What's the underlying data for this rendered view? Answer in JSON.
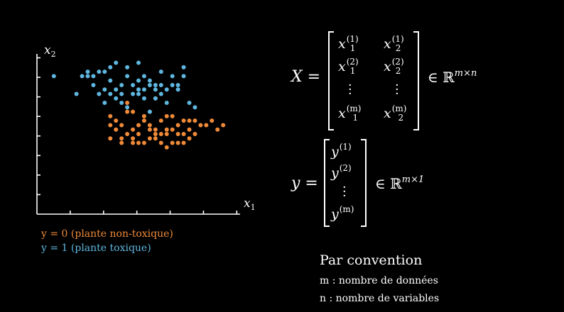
{
  "plot": {
    "x_axis_label": "x",
    "x_axis_sub": "1",
    "y_axis_label": "x",
    "y_axis_sub": "2",
    "colors": {
      "class0": "#f08a38",
      "class1": "#5fb7e0",
      "axis": "#ffffff"
    },
    "class0_points": [
      [
        21,
        26
      ],
      [
        23,
        22
      ],
      [
        16,
        25
      ],
      [
        19,
        22
      ],
      [
        24,
        16
      ],
      [
        18,
        20
      ],
      [
        21,
        19
      ],
      [
        25,
        20
      ],
      [
        14,
        21
      ],
      [
        27,
        19
      ],
      [
        17,
        19
      ],
      [
        20,
        17
      ],
      [
        22,
        18
      ],
      [
        26,
        18
      ],
      [
        15,
        17
      ],
      [
        28,
        18
      ],
      [
        19,
        16
      ],
      [
        23,
        15
      ],
      [
        13,
        22
      ],
      [
        24,
        22
      ],
      [
        18,
        18
      ],
      [
        21,
        17
      ],
      [
        25,
        16
      ],
      [
        16,
        18
      ],
      [
        29,
        20
      ],
      [
        13,
        17
      ],
      [
        22,
        21
      ],
      [
        15,
        20
      ],
      [
        27,
        17
      ],
      [
        20,
        20
      ],
      [
        23,
        18
      ],
      [
        17,
        16
      ],
      [
        14,
        19
      ],
      [
        26,
        21
      ],
      [
        19,
        21
      ],
      [
        24,
        19
      ],
      [
        15,
        16
      ],
      [
        28,
        21
      ],
      [
        22,
        16
      ],
      [
        16,
        23
      ],
      [
        20,
        19
      ],
      [
        25,
        18
      ],
      [
        18,
        16
      ],
      [
        13,
        20
      ],
      [
        27,
        21
      ],
      [
        21,
        18
      ],
      [
        30,
        20
      ],
      [
        23,
        19
      ],
      [
        17,
        17
      ],
      [
        26,
        16
      ],
      [
        32,
        19
      ],
      [
        33,
        20
      ],
      [
        31,
        21
      ],
      [
        17,
        23
      ],
      [
        20,
        23
      ]
    ],
    "class1_points": [
      [
        8,
        31
      ],
      [
        14,
        34
      ],
      [
        18,
        34
      ],
      [
        22,
        32
      ],
      [
        26,
        33
      ],
      [
        12,
        32
      ],
      [
        16,
        31
      ],
      [
        20,
        30
      ],
      [
        24,
        29
      ],
      [
        10,
        29
      ],
      [
        14,
        28
      ],
      [
        18,
        28
      ],
      [
        22,
        27
      ],
      [
        27,
        25
      ],
      [
        13,
        30
      ],
      [
        17,
        29
      ],
      [
        21,
        29
      ],
      [
        25,
        28
      ],
      [
        11,
        27
      ],
      [
        15,
        27
      ],
      [
        19,
        26
      ],
      [
        23,
        25
      ],
      [
        12,
        25
      ],
      [
        16,
        24
      ],
      [
        20,
        23
      ],
      [
        28,
        24
      ],
      [
        9,
        31
      ],
      [
        13,
        33
      ],
      [
        19,
        31
      ],
      [
        23,
        28
      ],
      [
        15,
        29
      ],
      [
        18,
        30
      ],
      [
        21,
        28
      ],
      [
        11,
        32
      ],
      [
        17,
        27
      ],
      [
        25,
        29
      ],
      [
        14,
        26
      ],
      [
        20,
        29
      ],
      [
        10,
        31
      ],
      [
        16,
        33
      ],
      [
        22,
        29
      ],
      [
        12,
        28
      ],
      [
        26,
        31
      ],
      [
        19,
        28
      ],
      [
        15,
        25
      ],
      [
        21,
        26
      ],
      [
        13,
        27
      ],
      [
        24,
        31
      ],
      [
        18,
        27
      ],
      [
        3,
        31
      ],
      [
        9,
        32
      ],
      [
        7,
        27
      ]
    ],
    "legend": [
      {
        "label": "y = 0 (plante non-toxique)"
      },
      {
        "label": "y = 1 (plante toxique)"
      }
    ]
  },
  "equations": {
    "X_lhs": "X =",
    "X_matrix": [
      [
        "x",
        "1",
        "(1)",
        "x",
        "2",
        "(1)"
      ],
      [
        "x",
        "1",
        "(2)",
        "x",
        "2",
        "(2)"
      ],
      [
        "x",
        "1",
        "(m)",
        "x",
        "2",
        "(m)"
      ]
    ],
    "X_set": "∈ ℝ",
    "X_set_sup": "m×n",
    "y_lhs": "y =",
    "y_vector": [
      [
        "y",
        "(1)"
      ],
      [
        "y",
        "(2)"
      ],
      [
        "y",
        "(m)"
      ]
    ],
    "y_set": "∈ ℝ",
    "y_set_sup": "m×1"
  },
  "convention": {
    "title": "Par convention",
    "items": [
      "m : nombre de données",
      "n : nombre de variables"
    ]
  }
}
